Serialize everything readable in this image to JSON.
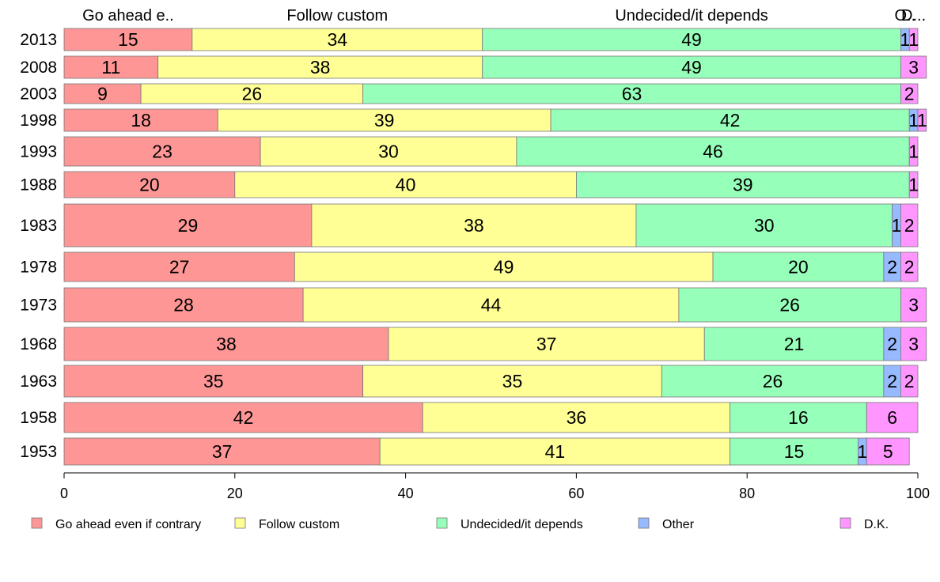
{
  "chart_data": {
    "type": "bar",
    "orientation": "horizontal",
    "stacked": true,
    "categories": [
      "2013",
      "2008",
      "2003",
      "1998",
      "1993",
      "1988",
      "1983",
      "1978",
      "1973",
      "1968",
      "1963",
      "1958",
      "1953"
    ],
    "series": [
      {
        "name": "Go ahead even if contrary",
        "color": "#ff9696",
        "values": [
          15,
          11,
          9,
          18,
          23,
          20,
          29,
          27,
          28,
          38,
          35,
          42,
          37
        ]
      },
      {
        "name": "Follow custom",
        "color": "#ffff96",
        "values": [
          34,
          38,
          26,
          39,
          30,
          40,
          38,
          49,
          44,
          37,
          35,
          36,
          41
        ]
      },
      {
        "name": "Undecided/it depends",
        "color": "#96ffb9",
        "values": [
          49,
          49,
          63,
          42,
          46,
          39,
          30,
          20,
          26,
          21,
          26,
          16,
          15
        ]
      },
      {
        "name": "Other",
        "color": "#96b9ff",
        "values": [
          1,
          0,
          0,
          1,
          0,
          0,
          1,
          2,
          0,
          2,
          2,
          0,
          1
        ]
      },
      {
        "name": "D.K.",
        "color": "#ff96ff",
        "values": [
          1,
          3,
          2,
          1,
          1,
          1,
          2,
          2,
          3,
          3,
          2,
          6,
          5
        ]
      }
    ],
    "top_labels": [
      "Go ahead e..",
      "Follow custom",
      "Undecided/it depends",
      "O..",
      "D..."
    ],
    "x_ticks": [
      "0",
      "20",
      "40",
      "60",
      "80",
      "100"
    ],
    "xlim": [
      0,
      100
    ],
    "grid": false,
    "legend": "bottom"
  }
}
